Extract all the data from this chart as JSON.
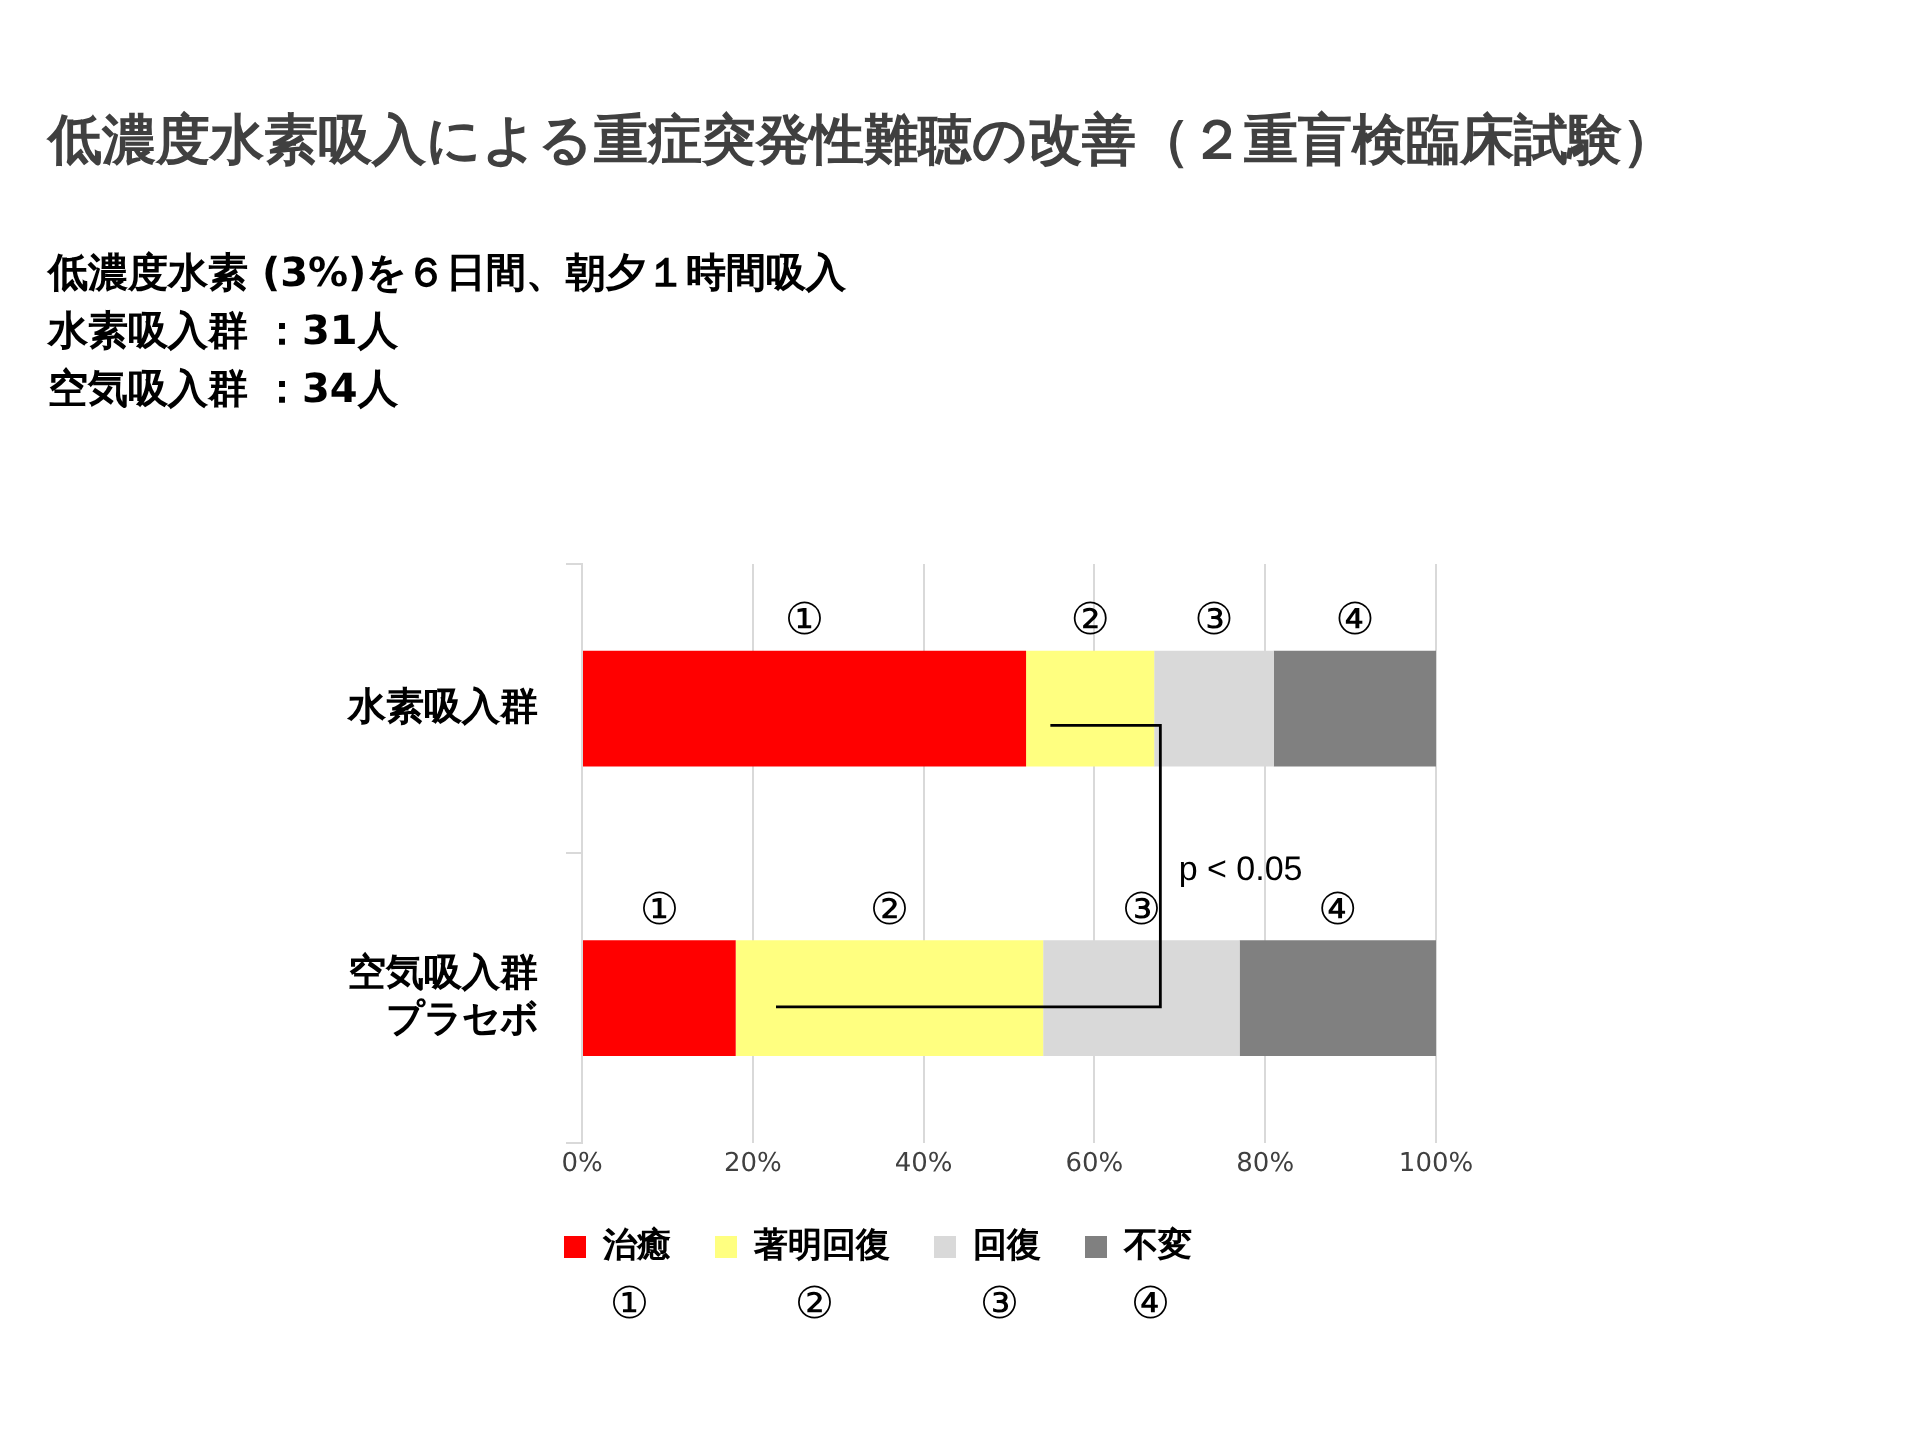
{
  "chart_data": {
    "type": "bar",
    "orientation": "horizontal",
    "stacked": true,
    "title": "低濃度水素吸入による重症突発性難聴の改善（２重盲検臨床試験）",
    "subtitle": "低濃度水素 (3%)を６日間、朝夕１時間吸入",
    "categories": [
      "水素吸入群",
      "空気吸入群プラセボ"
    ],
    "series": [
      {
        "name": "治癒",
        "color": "#ff0000",
        "values": [
          52,
          18
        ],
        "value_labels": [
          "①",
          "①"
        ]
      },
      {
        "name": "著明回復",
        "color": "#ffff80",
        "values": [
          15,
          36
        ],
        "value_labels": [
          "②",
          "②"
        ]
      },
      {
        "name": "回復",
        "color": "#d9d9d9",
        "values": [
          14,
          23
        ],
        "value_labels": [
          "③",
          "③"
        ]
      },
      {
        "name": "不変",
        "color": "#808080",
        "values": [
          19,
          23
        ],
        "value_labels": [
          "④",
          "④"
        ]
      }
    ],
    "xlim": [
      0,
      100
    ],
    "xticks": [
      {
        "value": 0,
        "label": "0%"
      },
      {
        "value": 20,
        "label": "20%"
      },
      {
        "value": 40,
        "label": "40%"
      },
      {
        "value": 60,
        "label": "60%"
      },
      {
        "value": 80,
        "label": "80%"
      },
      {
        "value": 100,
        "label": "100%"
      }
    ],
    "grid": "x",
    "legend": "bottom",
    "annotations": [
      "水素吸入群 ：31人",
      "空気吸入群 ：34人",
      "p < 0.05",
      "①",
      "②",
      "③",
      "④"
    ]
  }
}
